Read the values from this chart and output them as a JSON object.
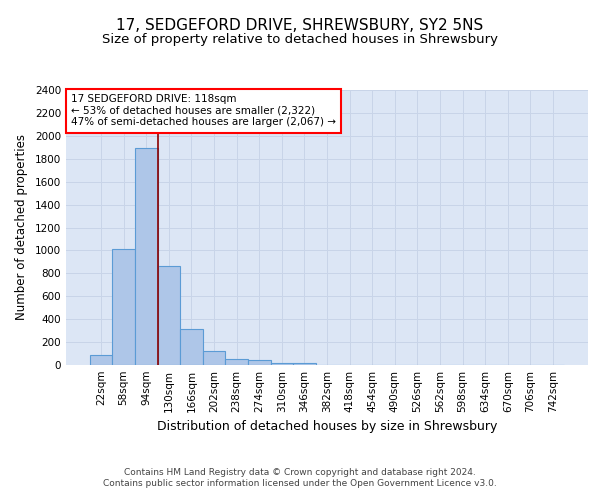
{
  "title": "17, SEDGEFORD DRIVE, SHREWSBURY, SY2 5NS",
  "subtitle": "Size of property relative to detached houses in Shrewsbury",
  "xlabel": "Distribution of detached houses by size in Shrewsbury",
  "ylabel": "Number of detached properties",
  "footer_line1": "Contains HM Land Registry data © Crown copyright and database right 2024.",
  "footer_line2": "Contains public sector information licensed under the Open Government Licence v3.0.",
  "bin_labels": [
    "22sqm",
    "58sqm",
    "94sqm",
    "130sqm",
    "166sqm",
    "202sqm",
    "238sqm",
    "274sqm",
    "310sqm",
    "346sqm",
    "382sqm",
    "418sqm",
    "454sqm",
    "490sqm",
    "526sqm",
    "562sqm",
    "598sqm",
    "634sqm",
    "670sqm",
    "706sqm",
    "742sqm"
  ],
  "bar_values": [
    90,
    1010,
    1890,
    860,
    310,
    120,
    55,
    48,
    18,
    18,
    0,
    0,
    0,
    0,
    0,
    0,
    0,
    0,
    0,
    0,
    0
  ],
  "bar_color": "#aec6e8",
  "bar_edgecolor": "#5b9bd5",
  "bar_linewidth": 0.8,
  "grid_color": "#c8d4e8",
  "bg_color": "#dce6f5",
  "annotation_text": "17 SEDGEFORD DRIVE: 118sqm\n← 53% of detached houses are smaller (2,322)\n47% of semi-detached houses are larger (2,067) →",
  "annotation_box_edgecolor": "red",
  "vline_color": "#8b0000",
  "vline_linewidth": 1.2,
  "vline_xindex": 2,
  "ylim": [
    0,
    2400
  ],
  "yticks": [
    0,
    200,
    400,
    600,
    800,
    1000,
    1200,
    1400,
    1600,
    1800,
    2000,
    2200,
    2400
  ],
  "title_fontsize": 11,
  "subtitle_fontsize": 9.5,
  "xlabel_fontsize": 9,
  "ylabel_fontsize": 8.5,
  "tick_fontsize": 7.5,
  "annotation_fontsize": 7.5,
  "footer_fontsize": 6.5
}
